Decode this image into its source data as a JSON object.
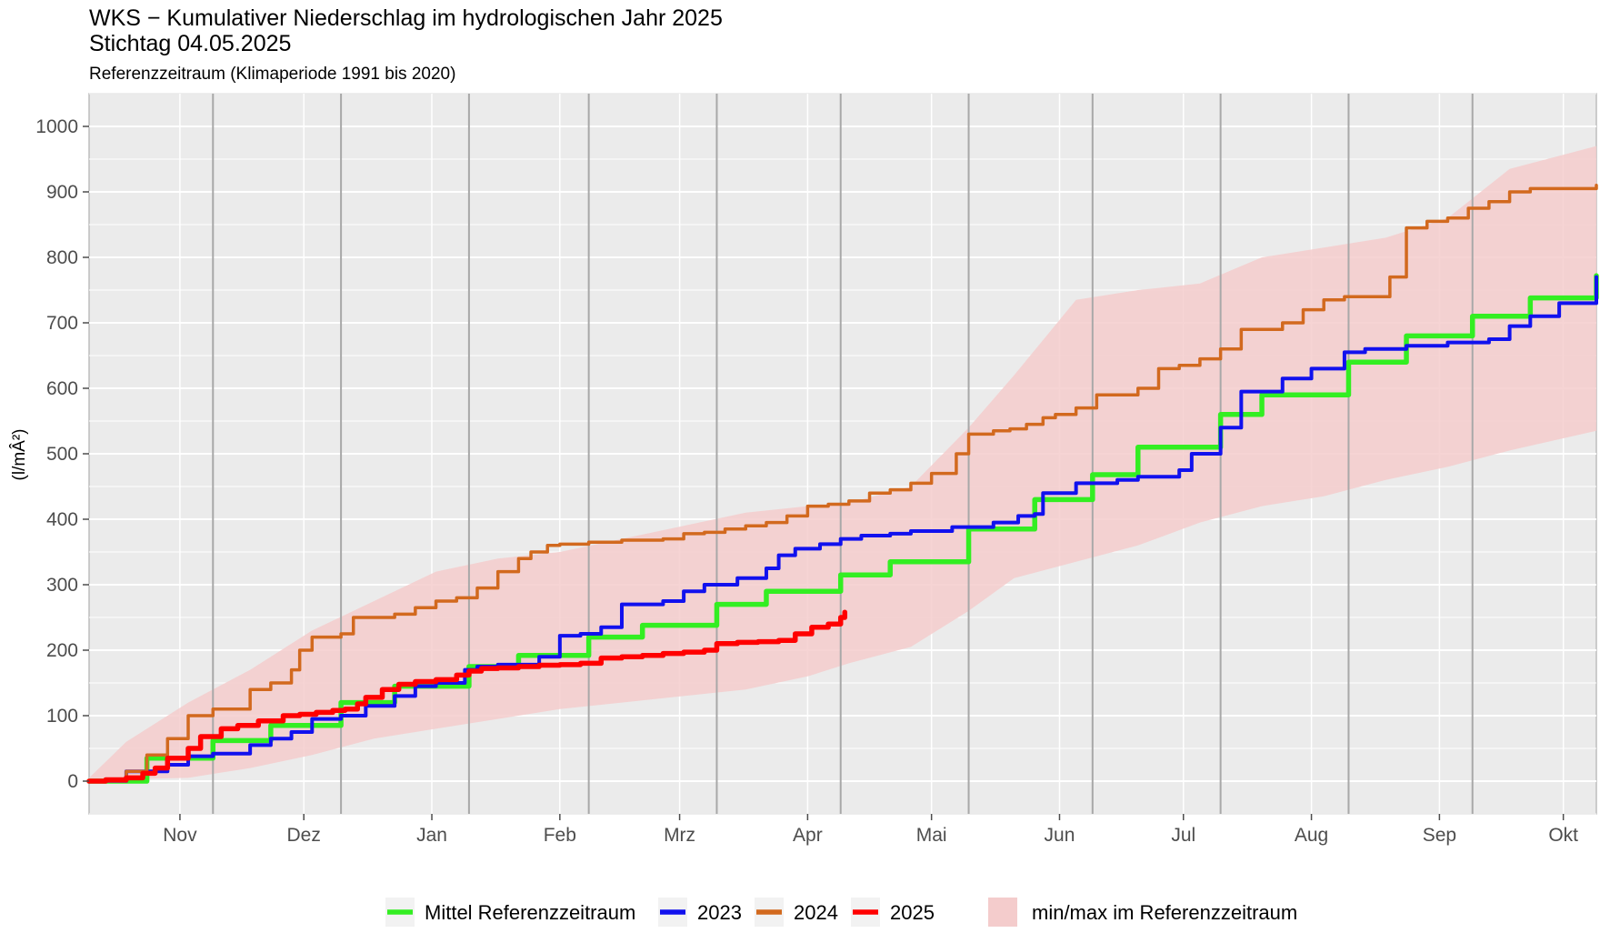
{
  "title": "WKS − Kumulativer Niederschlag im hydrologischen Jahr 2025",
  "title_line2": "Stichtag  04.05.2025",
  "subtitle": "Referenzzeitraum (Klimaperiode 1991 bis 2020)",
  "chart_data": {
    "type": "line",
    "ylabel": "(l/mÂ²)",
    "ylim": [
      -50,
      1050
    ],
    "y_ticks": [
      0,
      100,
      200,
      300,
      400,
      500,
      600,
      700,
      800,
      900,
      1000
    ],
    "x_unit": "day of hydrological year (1 = 01.11.2024)",
    "x_domain": [
      1,
      366
    ],
    "x_tick_labels": [
      {
        "label": "Nov",
        "x": 23
      },
      {
        "label": "Dez",
        "x": 53
      },
      {
        "label": "Jan",
        "x": 84
      },
      {
        "label": "Feb",
        "x": 115
      },
      {
        "label": "Mrz",
        "x": 144
      },
      {
        "label": "Apr",
        "x": 175
      },
      {
        "label": "Mai",
        "x": 205
      },
      {
        "label": "Jun",
        "x": 236
      },
      {
        "label": "Jul",
        "x": 266
      },
      {
        "label": "Aug",
        "x": 297
      },
      {
        "label": "Sep",
        "x": 328
      },
      {
        "label": "Okt",
        "x": 358
      }
    ],
    "month_boundaries": [
      31,
      62,
      93,
      122,
      153,
      183,
      214,
      244,
      275,
      306,
      336
    ],
    "grid": true,
    "legend_position": "bottom",
    "band": {
      "name": "min/max im Referenzzeitraum",
      "color": "#f4cccc",
      "x": [
        1,
        10,
        25,
        40,
        55,
        70,
        85,
        100,
        115,
        130,
        145,
        160,
        175,
        185,
        200,
        214,
        225,
        240,
        255,
        270,
        285,
        300,
        315,
        330,
        345,
        366
      ],
      "min": [
        0,
        3,
        5,
        20,
        40,
        65,
        80,
        95,
        110,
        120,
        130,
        140,
        160,
        180,
        205,
        260,
        310,
        335,
        360,
        395,
        420,
        435,
        460,
        480,
        505,
        535
      ],
      "max": [
        5,
        60,
        120,
        170,
        230,
        275,
        320,
        340,
        350,
        370,
        390,
        410,
        420,
        425,
        450,
        540,
        620,
        735,
        750,
        760,
        800,
        815,
        830,
        860,
        935,
        970
      ]
    },
    "series": [
      {
        "name": "Mittel Referenzzeitraum",
        "color": "#33ee22",
        "width": 5.5,
        "x": [
          1,
          15,
          31,
          45,
          62,
          75,
          93,
          105,
          122,
          135,
          153,
          165,
          183,
          195,
          214,
          230,
          244,
          255,
          275,
          285,
          306,
          320,
          336,
          350,
          366
        ],
        "y": [
          0,
          35,
          62,
          85,
          120,
          145,
          175,
          192,
          220,
          238,
          270,
          290,
          315,
          335,
          385,
          430,
          468,
          510,
          560,
          590,
          640,
          680,
          710,
          738,
          772
        ]
      },
      {
        "name": "2023",
        "color": "#1111ee",
        "width": 4,
        "x": [
          1,
          10,
          20,
          25,
          31,
          40,
          45,
          50,
          55,
          62,
          68,
          75,
          80,
          85,
          92,
          95,
          100,
          110,
          115,
          120,
          125,
          130,
          140,
          145,
          150,
          158,
          165,
          168,
          172,
          178,
          183,
          188,
          195,
          200,
          210,
          220,
          226,
          230,
          232,
          240,
          250,
          255,
          265,
          268,
          275,
          280,
          290,
          297,
          305,
          310,
          320,
          330,
          340,
          345,
          350,
          357,
          366
        ],
        "y": [
          0,
          15,
          25,
          38,
          42,
          55,
          65,
          75,
          95,
          100,
          115,
          130,
          145,
          150,
          170,
          175,
          178,
          190,
          222,
          225,
          235,
          270,
          275,
          290,
          300,
          310,
          325,
          345,
          355,
          362,
          370,
          375,
          378,
          382,
          388,
          395,
          405,
          408,
          440,
          455,
          460,
          465,
          475,
          500,
          540,
          595,
          615,
          630,
          655,
          660,
          665,
          670,
          675,
          695,
          710,
          730,
          770
        ]
      },
      {
        "name": "2024",
        "color": "#d2691e",
        "width": 3.5,
        "x": [
          1,
          10,
          15,
          20,
          25,
          31,
          40,
          45,
          50,
          52,
          55,
          62,
          65,
          70,
          75,
          80,
          85,
          90,
          95,
          100,
          105,
          108,
          112,
          115,
          122,
          130,
          140,
          145,
          150,
          155,
          160,
          165,
          170,
          175,
          180,
          185,
          190,
          195,
          200,
          205,
          211,
          214,
          220,
          224,
          228,
          232,
          235,
          240,
          245,
          255,
          260,
          265,
          270,
          275,
          280,
          290,
          295,
          300,
          305,
          313,
          316,
          320,
          325,
          330,
          335,
          340,
          345,
          350,
          358,
          366
        ],
        "y": [
          0,
          15,
          40,
          65,
          100,
          110,
          140,
          150,
          170,
          200,
          220,
          225,
          250,
          250,
          255,
          265,
          275,
          280,
          295,
          320,
          340,
          350,
          360,
          362,
          365,
          368,
          370,
          378,
          380,
          385,
          390,
          395,
          405,
          420,
          423,
          428,
          440,
          445,
          455,
          470,
          500,
          530,
          535,
          538,
          545,
          555,
          560,
          570,
          590,
          600,
          630,
          635,
          645,
          660,
          690,
          700,
          720,
          735,
          740,
          740,
          770,
          845,
          855,
          860,
          875,
          885,
          900,
          905,
          905,
          910
        ]
      },
      {
        "name": "2025",
        "color": "#ff0000",
        "width": 5.5,
        "x": [
          1,
          5,
          10,
          14,
          17,
          20,
          25,
          28,
          33,
          37,
          42,
          48,
          52,
          56,
          60,
          63,
          66,
          68,
          72,
          76,
          80,
          85,
          90,
          93,
          96,
          100,
          105,
          110,
          115,
          120,
          125,
          130,
          135,
          140,
          145,
          150,
          153,
          158,
          163,
          168,
          172,
          176,
          180,
          183,
          184
        ],
        "y": [
          0,
          2,
          5,
          12,
          20,
          35,
          50,
          68,
          80,
          85,
          92,
          100,
          102,
          105,
          108,
          110,
          118,
          128,
          140,
          148,
          152,
          155,
          162,
          168,
          172,
          173,
          175,
          177,
          178,
          180,
          188,
          190,
          192,
          195,
          197,
          200,
          210,
          212,
          213,
          215,
          225,
          235,
          240,
          250,
          258
        ]
      }
    ]
  },
  "legend": {
    "items": [
      {
        "label": "Mittel Referenzzeitraum",
        "color": "#33ee22"
      },
      {
        "label": "2023",
        "color": "#1111ee"
      },
      {
        "label": "2024",
        "color": "#d2691e"
      },
      {
        "label": "2025",
        "color": "#ff0000"
      }
    ],
    "band_label": "min/max im Referenzzeitraum",
    "band_color": "#f4cccc"
  }
}
